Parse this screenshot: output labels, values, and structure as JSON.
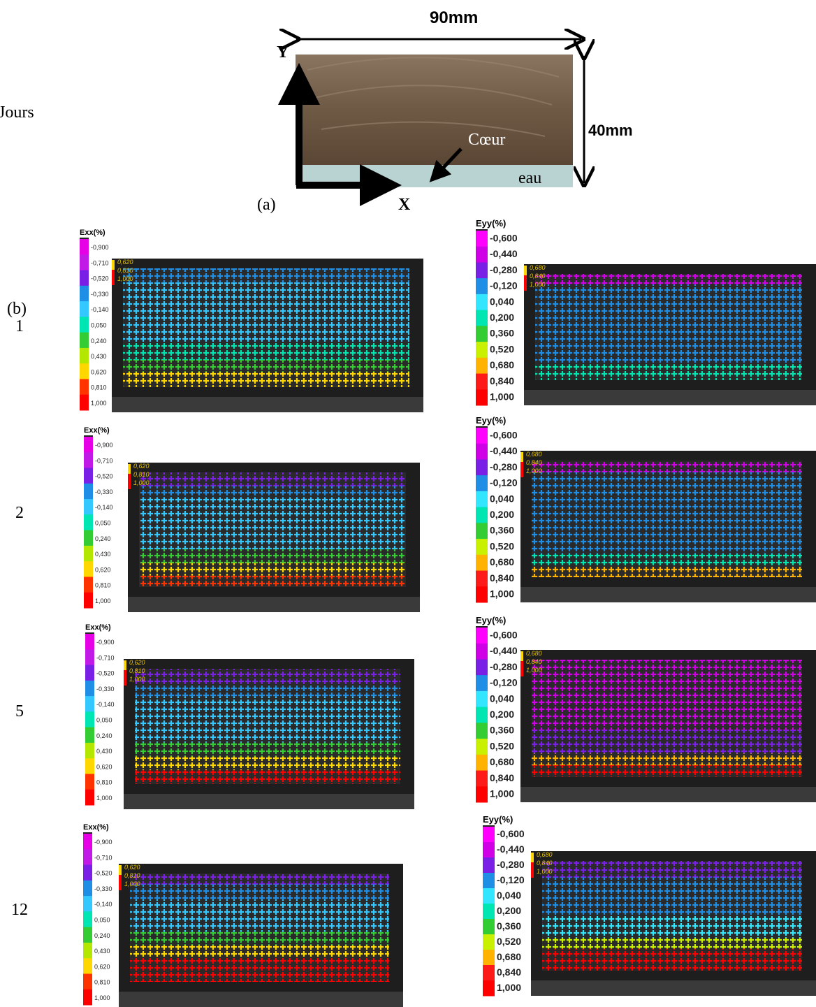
{
  "figure_a": {
    "label": "(a)",
    "width_label": "90mm",
    "height_label": "40mm",
    "y_axis": "Y",
    "x_axis": "X",
    "core": "Cœur",
    "water": "eau"
  },
  "left_header": "Jours",
  "b_label": "(b)",
  "rows": [
    {
      "day": "1"
    },
    {
      "day": "2"
    },
    {
      "day": "5"
    },
    {
      "day": "12"
    }
  ],
  "exx_scale": {
    "title": "Exx(%)",
    "ticks": [
      "-0,900",
      "-0,710",
      "-0,520",
      "-0,330",
      "-0,140",
      "0,050",
      "0,240",
      "0,430",
      "0,620",
      "0,810",
      "1,000"
    ],
    "colors": [
      "#e600e6",
      "#c21ae6",
      "#7a1fe6",
      "#1f8fe6",
      "#33c8ff",
      "#00e6b3",
      "#33cc33",
      "#b3e600",
      "#ffd700",
      "#ff3300",
      "#ff0000"
    ],
    "overlay": [
      "0,620",
      "0,810",
      "1,000"
    ]
  },
  "eyy_scale": {
    "title": "Eyy(%)",
    "ticks": [
      "-0,600",
      "-0,440",
      "-0,280",
      "-0,120",
      "0,040",
      "0,200",
      "0,360",
      "0,520",
      "0,680",
      "0,840",
      "1,000"
    ],
    "colors": [
      "#ff00ff",
      "#d000e6",
      "#7a1fe6",
      "#1f8fe6",
      "#33e6ff",
      "#00e6b3",
      "#33cc33",
      "#c8f000",
      "#ffb300",
      "#ff1a1a",
      "#ff0000"
    ],
    "overlay": [
      "0,680",
      "0,840",
      "1,000"
    ]
  }
}
